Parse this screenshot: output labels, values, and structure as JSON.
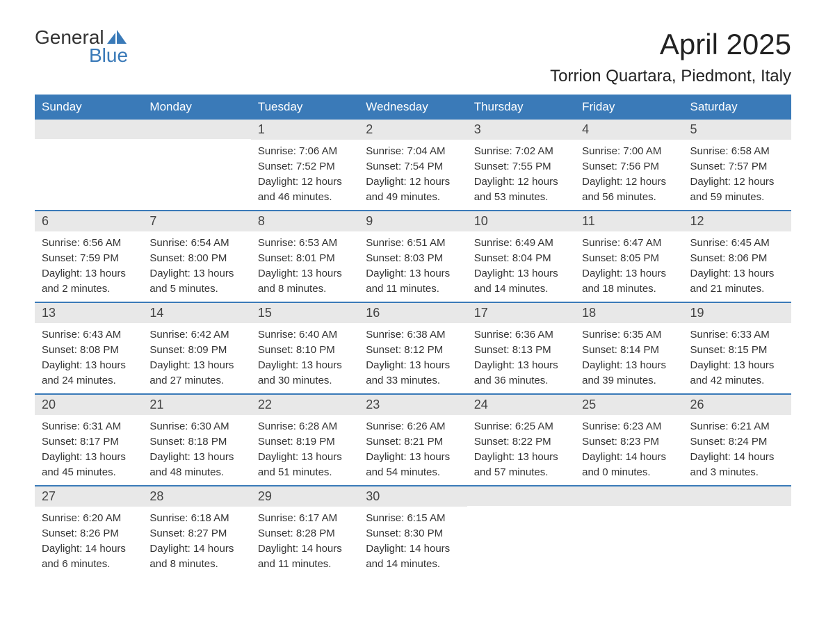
{
  "logo": {
    "text1": "General",
    "text2": "Blue",
    "icon_color": "#3a7ab8"
  },
  "title": "April 2025",
  "location": "Torrion Quartara, Piedmont, Italy",
  "colors": {
    "header_bg": "#3a7ab8",
    "header_text": "#ffffff",
    "daynum_bg": "#e8e8e8",
    "border": "#3a7ab8",
    "text": "#333333"
  },
  "weekdays": [
    "Sunday",
    "Monday",
    "Tuesday",
    "Wednesday",
    "Thursday",
    "Friday",
    "Saturday"
  ],
  "weeks": [
    [
      {
        "empty": true
      },
      {
        "empty": true
      },
      {
        "day": "1",
        "sunrise": "Sunrise: 7:06 AM",
        "sunset": "Sunset: 7:52 PM",
        "daylight1": "Daylight: 12 hours",
        "daylight2": "and 46 minutes."
      },
      {
        "day": "2",
        "sunrise": "Sunrise: 7:04 AM",
        "sunset": "Sunset: 7:54 PM",
        "daylight1": "Daylight: 12 hours",
        "daylight2": "and 49 minutes."
      },
      {
        "day": "3",
        "sunrise": "Sunrise: 7:02 AM",
        "sunset": "Sunset: 7:55 PM",
        "daylight1": "Daylight: 12 hours",
        "daylight2": "and 53 minutes."
      },
      {
        "day": "4",
        "sunrise": "Sunrise: 7:00 AM",
        "sunset": "Sunset: 7:56 PM",
        "daylight1": "Daylight: 12 hours",
        "daylight2": "and 56 minutes."
      },
      {
        "day": "5",
        "sunrise": "Sunrise: 6:58 AM",
        "sunset": "Sunset: 7:57 PM",
        "daylight1": "Daylight: 12 hours",
        "daylight2": "and 59 minutes."
      }
    ],
    [
      {
        "day": "6",
        "sunrise": "Sunrise: 6:56 AM",
        "sunset": "Sunset: 7:59 PM",
        "daylight1": "Daylight: 13 hours",
        "daylight2": "and 2 minutes."
      },
      {
        "day": "7",
        "sunrise": "Sunrise: 6:54 AM",
        "sunset": "Sunset: 8:00 PM",
        "daylight1": "Daylight: 13 hours",
        "daylight2": "and 5 minutes."
      },
      {
        "day": "8",
        "sunrise": "Sunrise: 6:53 AM",
        "sunset": "Sunset: 8:01 PM",
        "daylight1": "Daylight: 13 hours",
        "daylight2": "and 8 minutes."
      },
      {
        "day": "9",
        "sunrise": "Sunrise: 6:51 AM",
        "sunset": "Sunset: 8:03 PM",
        "daylight1": "Daylight: 13 hours",
        "daylight2": "and 11 minutes."
      },
      {
        "day": "10",
        "sunrise": "Sunrise: 6:49 AM",
        "sunset": "Sunset: 8:04 PM",
        "daylight1": "Daylight: 13 hours",
        "daylight2": "and 14 minutes."
      },
      {
        "day": "11",
        "sunrise": "Sunrise: 6:47 AM",
        "sunset": "Sunset: 8:05 PM",
        "daylight1": "Daylight: 13 hours",
        "daylight2": "and 18 minutes."
      },
      {
        "day": "12",
        "sunrise": "Sunrise: 6:45 AM",
        "sunset": "Sunset: 8:06 PM",
        "daylight1": "Daylight: 13 hours",
        "daylight2": "and 21 minutes."
      }
    ],
    [
      {
        "day": "13",
        "sunrise": "Sunrise: 6:43 AM",
        "sunset": "Sunset: 8:08 PM",
        "daylight1": "Daylight: 13 hours",
        "daylight2": "and 24 minutes."
      },
      {
        "day": "14",
        "sunrise": "Sunrise: 6:42 AM",
        "sunset": "Sunset: 8:09 PM",
        "daylight1": "Daylight: 13 hours",
        "daylight2": "and 27 minutes."
      },
      {
        "day": "15",
        "sunrise": "Sunrise: 6:40 AM",
        "sunset": "Sunset: 8:10 PM",
        "daylight1": "Daylight: 13 hours",
        "daylight2": "and 30 minutes."
      },
      {
        "day": "16",
        "sunrise": "Sunrise: 6:38 AM",
        "sunset": "Sunset: 8:12 PM",
        "daylight1": "Daylight: 13 hours",
        "daylight2": "and 33 minutes."
      },
      {
        "day": "17",
        "sunrise": "Sunrise: 6:36 AM",
        "sunset": "Sunset: 8:13 PM",
        "daylight1": "Daylight: 13 hours",
        "daylight2": "and 36 minutes."
      },
      {
        "day": "18",
        "sunrise": "Sunrise: 6:35 AM",
        "sunset": "Sunset: 8:14 PM",
        "daylight1": "Daylight: 13 hours",
        "daylight2": "and 39 minutes."
      },
      {
        "day": "19",
        "sunrise": "Sunrise: 6:33 AM",
        "sunset": "Sunset: 8:15 PM",
        "daylight1": "Daylight: 13 hours",
        "daylight2": "and 42 minutes."
      }
    ],
    [
      {
        "day": "20",
        "sunrise": "Sunrise: 6:31 AM",
        "sunset": "Sunset: 8:17 PM",
        "daylight1": "Daylight: 13 hours",
        "daylight2": "and 45 minutes."
      },
      {
        "day": "21",
        "sunrise": "Sunrise: 6:30 AM",
        "sunset": "Sunset: 8:18 PM",
        "daylight1": "Daylight: 13 hours",
        "daylight2": "and 48 minutes."
      },
      {
        "day": "22",
        "sunrise": "Sunrise: 6:28 AM",
        "sunset": "Sunset: 8:19 PM",
        "daylight1": "Daylight: 13 hours",
        "daylight2": "and 51 minutes."
      },
      {
        "day": "23",
        "sunrise": "Sunrise: 6:26 AM",
        "sunset": "Sunset: 8:21 PM",
        "daylight1": "Daylight: 13 hours",
        "daylight2": "and 54 minutes."
      },
      {
        "day": "24",
        "sunrise": "Sunrise: 6:25 AM",
        "sunset": "Sunset: 8:22 PM",
        "daylight1": "Daylight: 13 hours",
        "daylight2": "and 57 minutes."
      },
      {
        "day": "25",
        "sunrise": "Sunrise: 6:23 AM",
        "sunset": "Sunset: 8:23 PM",
        "daylight1": "Daylight: 14 hours",
        "daylight2": "and 0 minutes."
      },
      {
        "day": "26",
        "sunrise": "Sunrise: 6:21 AM",
        "sunset": "Sunset: 8:24 PM",
        "daylight1": "Daylight: 14 hours",
        "daylight2": "and 3 minutes."
      }
    ],
    [
      {
        "day": "27",
        "sunrise": "Sunrise: 6:20 AM",
        "sunset": "Sunset: 8:26 PM",
        "daylight1": "Daylight: 14 hours",
        "daylight2": "and 6 minutes."
      },
      {
        "day": "28",
        "sunrise": "Sunrise: 6:18 AM",
        "sunset": "Sunset: 8:27 PM",
        "daylight1": "Daylight: 14 hours",
        "daylight2": "and 8 minutes."
      },
      {
        "day": "29",
        "sunrise": "Sunrise: 6:17 AM",
        "sunset": "Sunset: 8:28 PM",
        "daylight1": "Daylight: 14 hours",
        "daylight2": "and 11 minutes."
      },
      {
        "day": "30",
        "sunrise": "Sunrise: 6:15 AM",
        "sunset": "Sunset: 8:30 PM",
        "daylight1": "Daylight: 14 hours",
        "daylight2": "and 14 minutes."
      },
      {
        "empty": true
      },
      {
        "empty": true
      },
      {
        "empty": true
      }
    ]
  ]
}
